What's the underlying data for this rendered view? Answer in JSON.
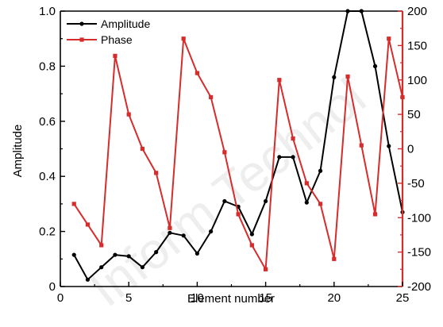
{
  "chart_data": {
    "type": "line",
    "xlabel": "Element number",
    "ylabel": "Amplitude",
    "xlim": [
      0,
      25
    ],
    "ylim": [
      0,
      1.0
    ],
    "ylim_right": [
      -200,
      200
    ],
    "x_ticks": [
      0,
      5,
      10,
      15,
      20,
      25
    ],
    "y_ticks": [
      0,
      0.2,
      0.4,
      0.6,
      0.8,
      1.0
    ],
    "y_tick_labels": [
      "0",
      "0.2",
      "0.4",
      "0.6",
      "0.8",
      "1.0"
    ],
    "y_right_ticks": [
      -200,
      -150,
      -100,
      -50,
      0,
      50,
      100,
      150,
      200
    ],
    "legend_position": "top-left",
    "grid": false,
    "x": [
      1,
      2,
      3,
      4,
      5,
      6,
      7,
      8,
      9,
      10,
      11,
      12,
      13,
      14,
      15,
      16,
      17,
      18,
      19,
      20,
      21,
      22,
      23,
      24,
      25
    ],
    "series": [
      {
        "name": "Amplitude",
        "axis": "left",
        "color": "#000000",
        "marker": "circle",
        "values": [
          0.115,
          0.025,
          0.07,
          0.115,
          0.11,
          0.07,
          0.125,
          0.195,
          0.185,
          0.12,
          0.2,
          0.31,
          0.29,
          0.19,
          0.31,
          0.47,
          0.47,
          0.305,
          0.42,
          0.76,
          1.0,
          1.0,
          0.8,
          0.51,
          0.27
        ]
      },
      {
        "name": "Phase",
        "axis": "right",
        "color": "#d62c2c",
        "marker": "square",
        "values": [
          -80,
          -110,
          -140,
          135,
          50,
          0,
          -35,
          -115,
          160,
          110,
          75,
          -5,
          -95,
          -140,
          -175,
          100,
          15,
          -50,
          -80,
          -160,
          105,
          5,
          -95,
          160,
          75
        ]
      }
    ]
  },
  "watermark": "Inform Technol"
}
